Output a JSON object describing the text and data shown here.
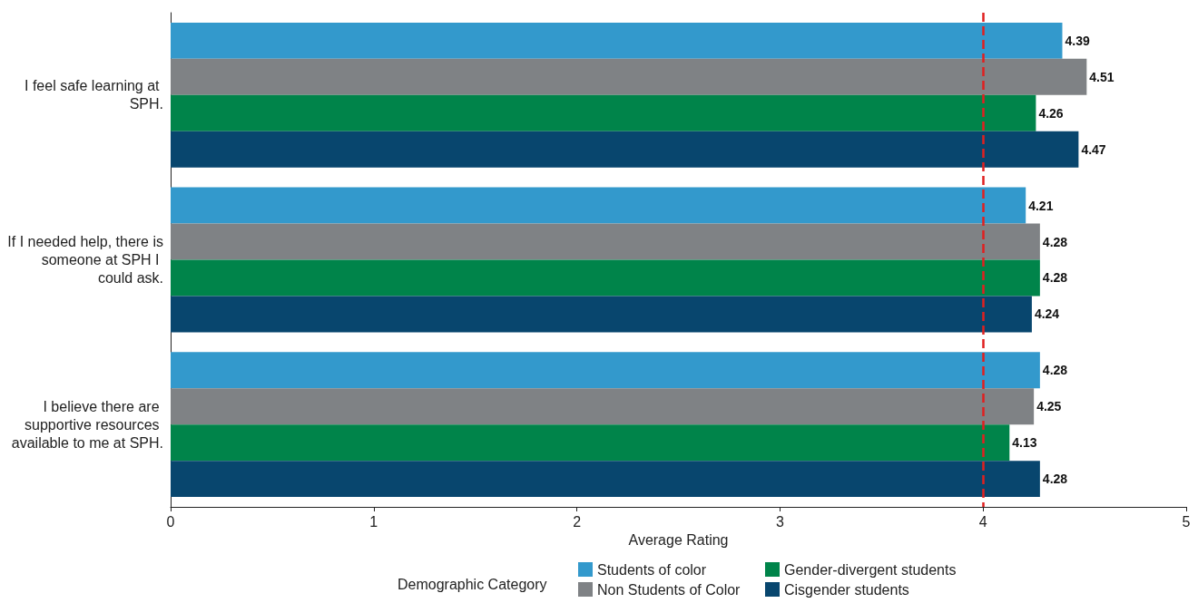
{
  "chart_data": {
    "type": "bar",
    "orientation": "horizontal",
    "xlabel": "Average Rating",
    "legend_title": "Demographic Category",
    "legend": "bottom",
    "categories": [
      "I feel safe learning at SPH.",
      "If I needed help, there is someone at SPH I could ask.",
      "I believe there are supportive resources available to me at SPH."
    ],
    "series": [
      {
        "name": "Students of color",
        "color": "#3399cc",
        "values": [
          4.39,
          4.21,
          4.28
        ]
      },
      {
        "name": "Non Students of Color",
        "color": "#7f8285",
        "values": [
          4.51,
          4.28,
          4.25
        ]
      },
      {
        "name": "Gender-divergent students",
        "color": "#00844a",
        "values": [
          4.26,
          4.28,
          4.13
        ]
      },
      {
        "name": "Cisgender students",
        "color": "#08466e",
        "values": [
          4.47,
          4.24,
          4.28
        ]
      }
    ],
    "xlim": [
      0,
      5
    ],
    "xticks": [
      0,
      1,
      2,
      3,
      4,
      5
    ],
    "data_labels": true,
    "grid": false,
    "ref_lines": [
      {
        "axis": "x",
        "value": 4,
        "color": "#e02020",
        "line_style": "dashed"
      }
    ]
  }
}
